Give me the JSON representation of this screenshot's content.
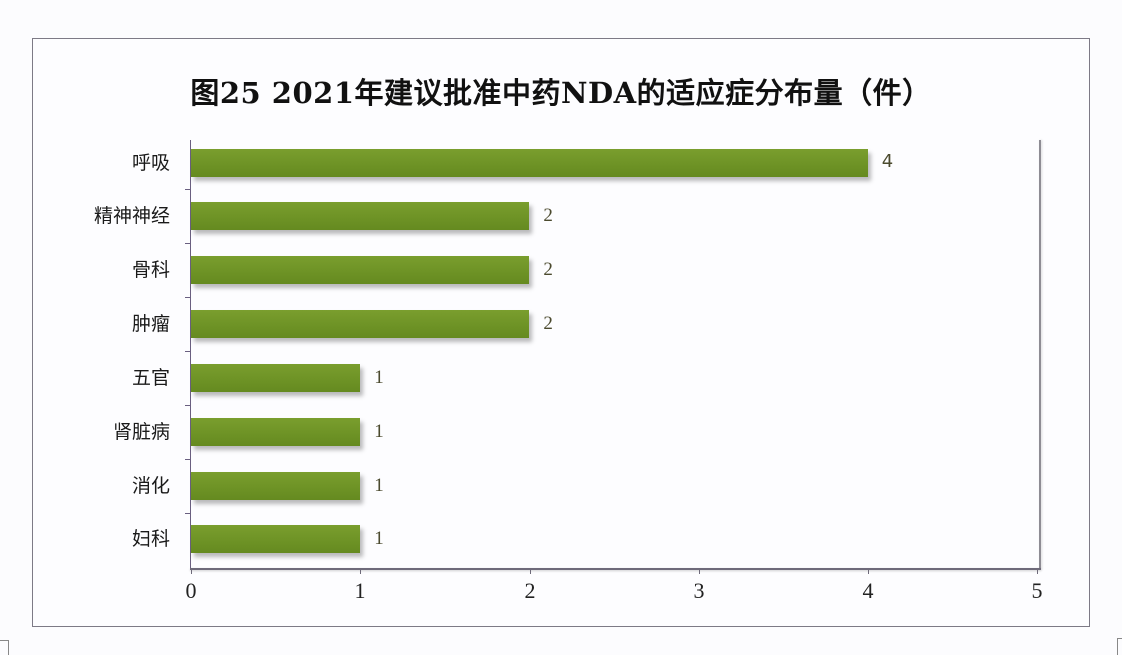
{
  "chart_data": {
    "type": "bar",
    "orientation": "horizontal",
    "title": "图25  2021年建议批准中药NDA的适应症分布量（件）",
    "xlabel": "",
    "ylabel": "",
    "categories": [
      "呼吸",
      "精神神经",
      "骨科",
      "肿瘤",
      "五官",
      "肾脏病",
      "消化",
      "妇科"
    ],
    "values": [
      4,
      2,
      2,
      2,
      1,
      1,
      1,
      1
    ],
    "xlim": [
      0,
      5
    ],
    "x_ticks": [
      "0",
      "1",
      "2",
      "3",
      "4",
      "5"
    ],
    "grid": false,
    "legend": null,
    "data_labels": true,
    "bar_color": "#6d9225"
  },
  "colors": {
    "bar": "#6d9225",
    "axis": "#6e6a7a",
    "frame": "#7d7a86",
    "value_label": "#4b4a2e"
  }
}
